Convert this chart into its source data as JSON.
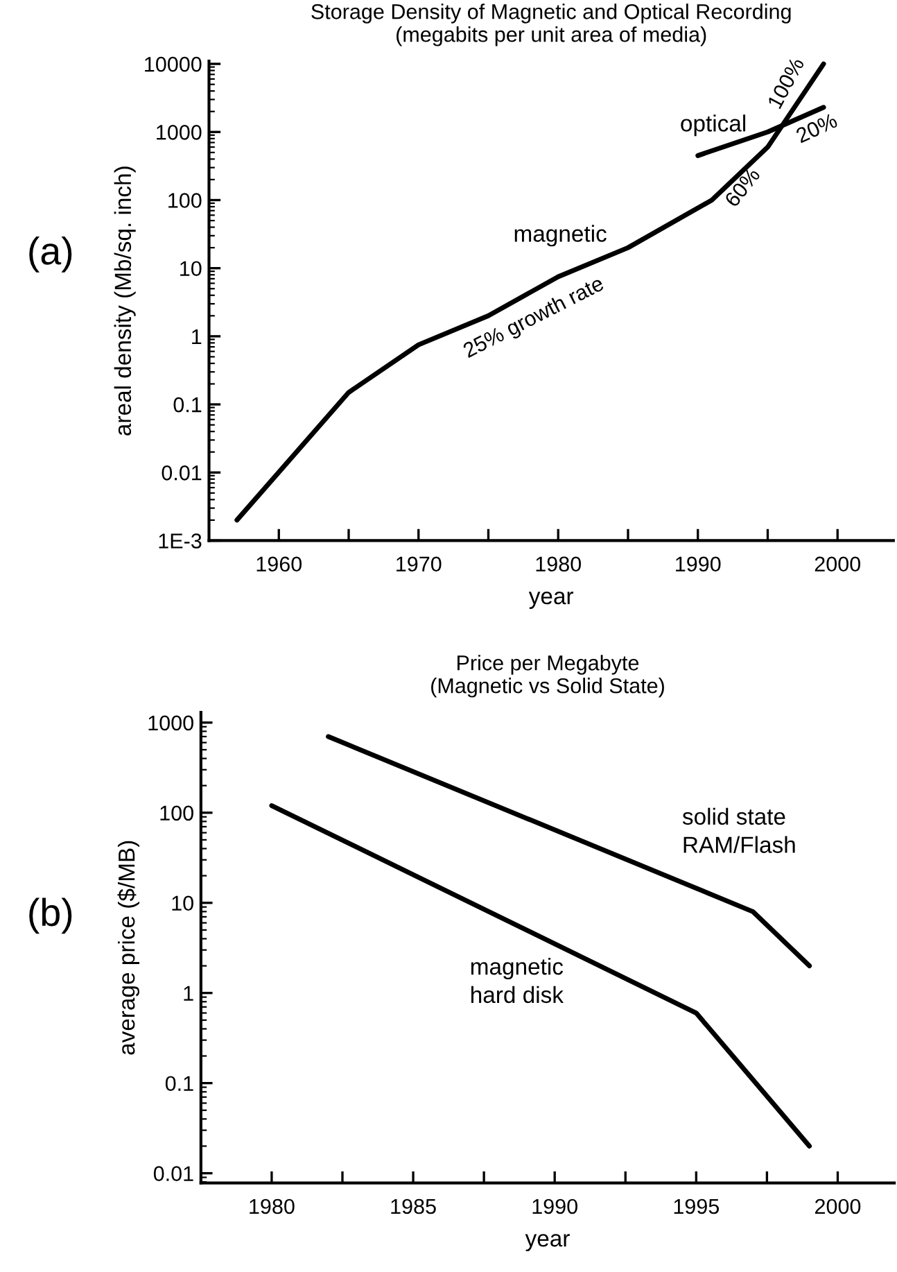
{
  "chart_data": [
    {
      "type": "line",
      "title": "Storage Density of Magnetic and Optical Recording",
      "subtitle": "(megabits per unit area of media)",
      "xlabel": "year",
      "ylabel": "areal density (Mb/sq. inch)",
      "log": "y",
      "grid": false,
      "legend": false,
      "marker": "none",
      "line_style": "solid",
      "xlim": [
        1955,
        2004
      ],
      "xticks": [
        1960,
        {
          "value": 1965,
          "label": null
        },
        1970,
        {
          "value": 1975,
          "label": null
        },
        1980,
        {
          "value": 1985,
          "label": null
        },
        1990,
        {
          "value": 1995,
          "label": null
        },
        2000
      ],
      "ylim": [
        0.001,
        11000
      ],
      "yticks": [
        {
          "value": 0.001,
          "label": "1E-3"
        },
        0.01,
        0.1,
        1,
        10,
        100,
        1000,
        10000
      ],
      "series": [
        {
          "name": "magnetic",
          "color": "#000000",
          "x": [
            1957,
            1965,
            1970,
            1975,
            1980,
            1985,
            1991,
            1995,
            1999
          ],
          "values": [
            0.002,
            0.15,
            0.75,
            2,
            7.5,
            20,
            100,
            600,
            10000
          ]
        },
        {
          "name": "optical",
          "color": "#000000",
          "x": [
            1990,
            1995,
            1999
          ],
          "values": [
            450,
            1000,
            2300
          ]
        }
      ],
      "annotations": [
        "(a)",
        {
          "text": "25% growth rate",
          "x": 1978,
          "y": 4
        },
        {
          "text": "60%",
          "x": 1993,
          "y": 250
        },
        {
          "text": "100%",
          "x": 1997.5,
          "y": 3000
        },
        {
          "text": "20%",
          "x": 1998,
          "y": 1600
        }
      ]
    },
    {
      "type": "line",
      "title": "Price per Megabyte",
      "subtitle": "(Magnetic vs Solid State)",
      "xlabel": "year",
      "ylabel": "average price ($/MB)",
      "log": "y",
      "grid": false,
      "legend": false,
      "marker": "none",
      "line_style": "solid",
      "xlim": [
        1977.5,
        2002
      ],
      "xticks": [
        1980,
        {
          "value": 1982.5,
          "label": null
        },
        1985,
        {
          "value": 1987.5,
          "label": null
        },
        1990,
        {
          "value": 1992.5,
          "label": null
        },
        1995,
        {
          "value": 1997.5,
          "label": null
        },
        2000
      ],
      "ylim": [
        0.0078,
        1300
      ],
      "yticks": [
        0.01,
        0.1,
        1,
        10,
        100,
        1000
      ],
      "series": [
        {
          "name": "solid state\nRAM/Flash",
          "color": "#000000",
          "x": [
            1982,
            1997,
            1999
          ],
          "values": [
            700,
            8,
            2
          ]
        },
        {
          "name": "magnetic\nhard disk",
          "color": "#000000",
          "x": [
            1980,
            1995,
            1999
          ],
          "values": [
            120,
            0.6,
            0.02
          ]
        }
      ],
      "annotations": [
        "(b)"
      ]
    }
  ]
}
